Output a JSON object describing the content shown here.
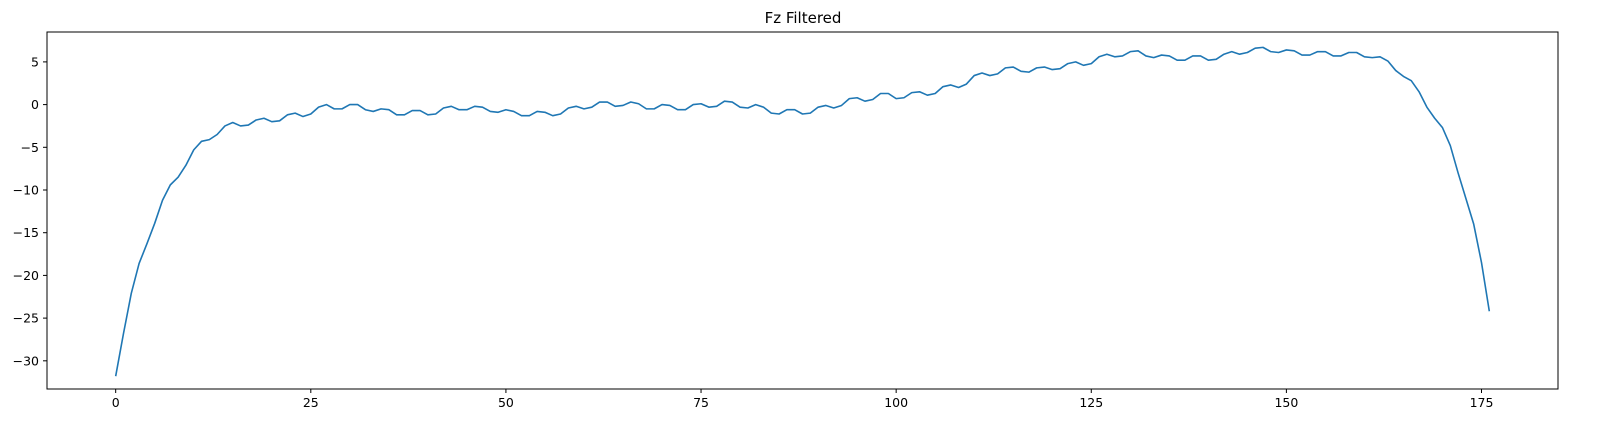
{
  "chart_data": {
    "type": "line",
    "title": "Fz Filtered",
    "xlabel": "",
    "ylabel": "",
    "xlim": [
      -8.8,
      184.8
    ],
    "ylim": [
      -33.3,
      8.5
    ],
    "xticks": [
      0,
      25,
      50,
      75,
      100,
      125,
      150,
      175
    ],
    "yticks": [
      5,
      0,
      -5,
      -10,
      -15,
      -20,
      -25,
      -30
    ],
    "grid": false,
    "line_color": "#1f77b4",
    "series": [
      {
        "x": [
          0,
          1,
          2,
          3,
          4,
          5,
          6,
          7,
          8,
          9,
          10,
          11,
          12,
          13,
          14,
          15,
          16,
          17,
          18,
          19,
          20,
          21,
          22,
          23,
          24,
          25,
          26,
          27,
          28,
          29,
          30,
          31,
          32,
          33,
          34,
          35,
          36,
          37,
          38,
          39,
          40,
          41,
          42,
          43,
          44,
          45,
          46,
          47,
          48,
          49,
          50,
          51,
          52,
          53,
          54,
          55,
          56,
          57,
          58,
          59,
          60,
          61,
          62,
          63,
          64,
          65,
          66,
          67,
          68,
          69,
          70,
          71,
          72,
          73,
          74,
          75,
          76,
          77,
          78,
          79,
          80,
          81,
          82,
          83,
          84,
          85,
          86,
          87,
          88,
          89,
          90,
          91,
          92,
          93,
          94,
          95,
          96,
          97,
          98,
          99,
          100,
          101,
          102,
          103,
          104,
          105,
          106,
          107,
          108,
          109,
          110,
          111,
          112,
          113,
          114,
          115,
          116,
          117,
          118,
          119,
          120,
          121,
          122,
          123,
          124,
          125,
          126,
          127,
          128,
          129,
          130,
          131,
          132,
          133,
          134,
          135,
          136,
          137,
          138,
          139,
          140,
          141,
          142,
          143,
          144,
          145,
          146,
          147,
          148,
          149,
          150,
          151,
          152,
          153,
          154,
          155,
          156,
          157,
          158,
          159,
          160,
          161,
          162,
          163,
          164,
          165,
          166,
          167,
          168,
          169,
          170,
          171,
          172,
          173,
          174,
          175,
          176
        ],
        "y": [
          -31.8,
          -26.8,
          -22.1,
          -18.6,
          -16.3,
          -13.9,
          -11.2,
          -9.4,
          -8.5,
          -7.1,
          -5.3,
          -4.3,
          -4.1,
          -3.5,
          -2.5,
          -2.1,
          -2.5,
          -2.4,
          -1.8,
          -1.6,
          -2.0,
          -1.9,
          -1.2,
          -1.0,
          -1.4,
          -1.1,
          -0.3,
          0.0,
          -0.5,
          -0.5,
          0.0,
          0.0,
          -0.6,
          -0.8,
          -0.5,
          -0.6,
          -1.2,
          -1.2,
          -0.7,
          -0.7,
          -1.2,
          -1.1,
          -0.4,
          -0.2,
          -0.6,
          -0.6,
          -0.2,
          -0.3,
          -0.8,
          -0.9,
          -0.6,
          -0.8,
          -1.3,
          -1.3,
          -0.8,
          -0.9,
          -1.3,
          -1.1,
          -0.4,
          -0.2,
          -0.5,
          -0.3,
          0.3,
          0.3,
          -0.2,
          -0.1,
          0.3,
          0.1,
          -0.5,
          -0.5,
          0.0,
          -0.1,
          -0.6,
          -0.6,
          0.0,
          0.1,
          -0.3,
          -0.2,
          0.4,
          0.3,
          -0.3,
          -0.4,
          0.0,
          -0.3,
          -1.0,
          -1.1,
          -0.6,
          -0.6,
          -1.1,
          -1.0,
          -0.3,
          -0.1,
          -0.4,
          -0.1,
          0.7,
          0.8,
          0.4,
          0.6,
          1.3,
          1.3,
          0.7,
          0.8,
          1.4,
          1.5,
          1.1,
          1.3,
          2.1,
          2.3,
          2.0,
          2.4,
          3.4,
          3.7,
          3.4,
          3.6,
          4.3,
          4.4,
          3.9,
          3.8,
          4.3,
          4.4,
          4.1,
          4.2,
          4.8,
          5.0,
          4.6,
          4.8,
          5.6,
          5.9,
          5.6,
          5.7,
          6.2,
          6.3,
          5.7,
          5.5,
          5.8,
          5.7,
          5.2,
          5.2,
          5.7,
          5.7,
          5.2,
          5.3,
          5.9,
          6.2,
          5.9,
          6.1,
          6.6,
          6.7,
          6.2,
          6.1,
          6.4,
          6.3,
          5.8,
          5.8,
          6.2,
          6.2,
          5.7,
          5.7,
          6.1,
          6.1,
          5.6,
          5.5,
          5.6,
          5.1,
          4.0,
          3.3,
          2.8,
          1.5,
          -0.3,
          -1.6,
          -2.7,
          -4.8,
          -8.0,
          -11.0,
          -14.0,
          -18.5,
          -24.2
        ]
      }
    ]
  }
}
